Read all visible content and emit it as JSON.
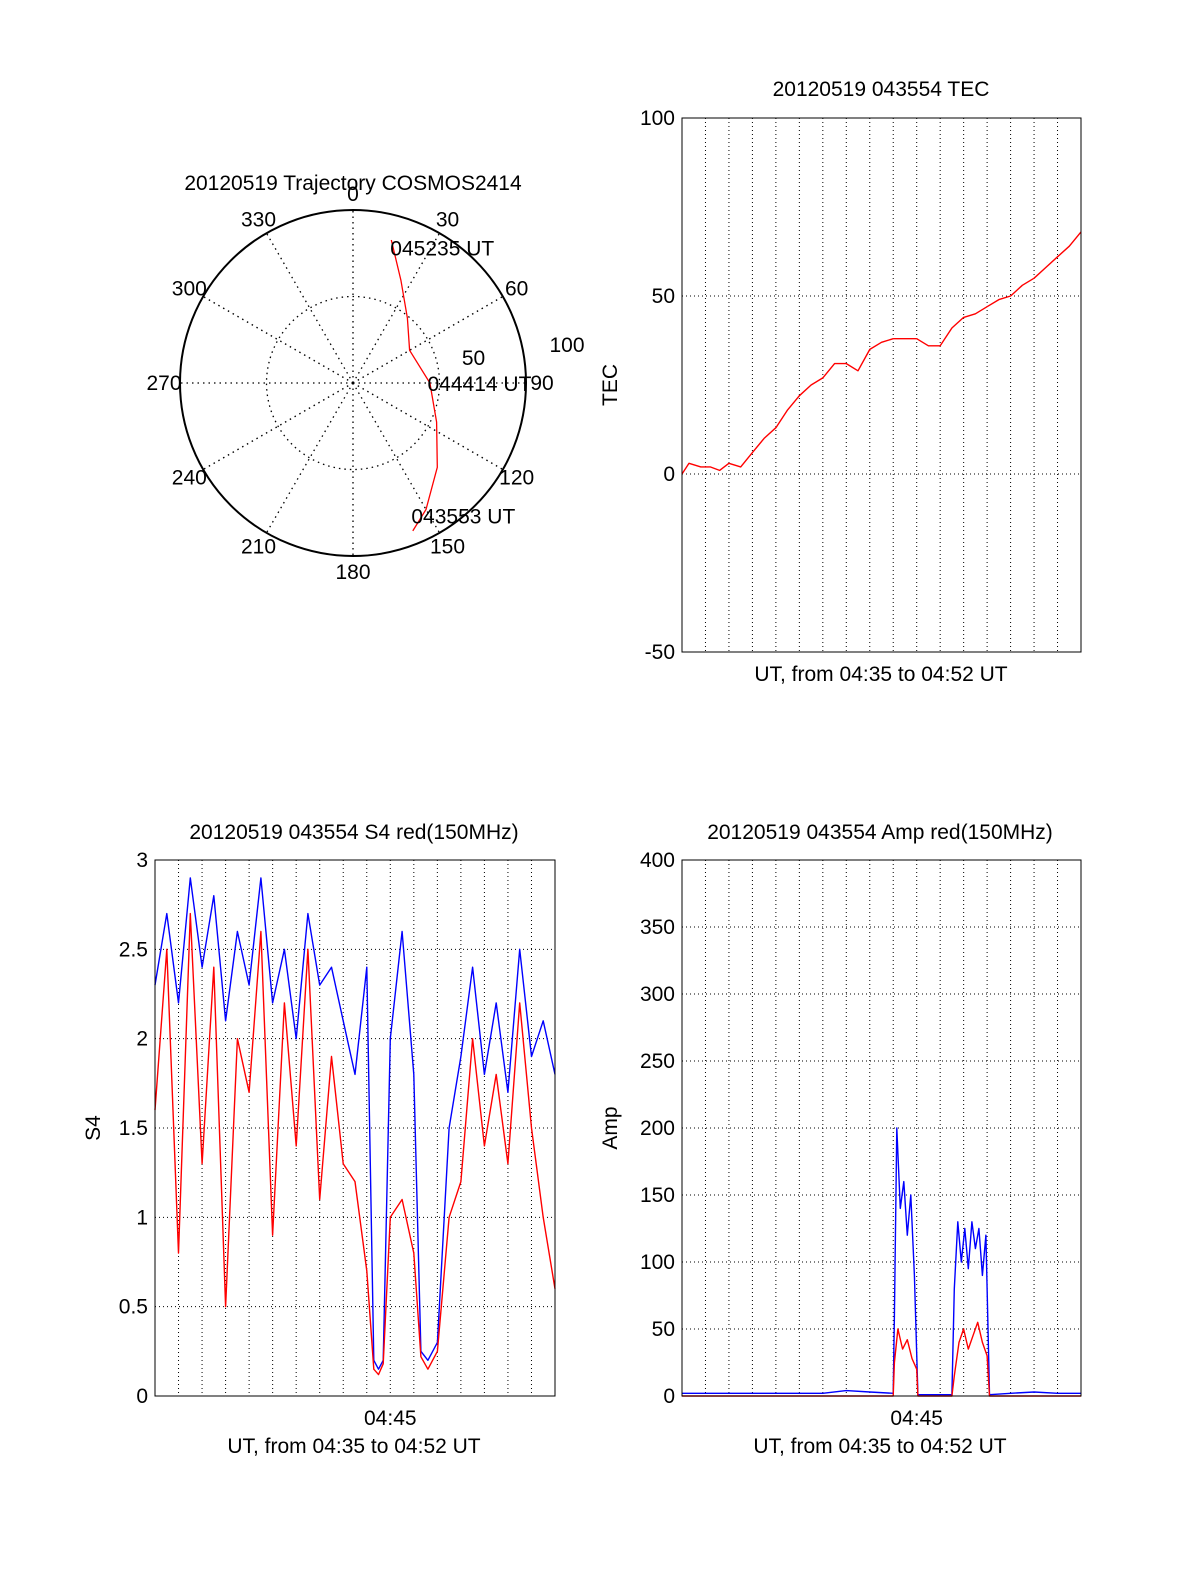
{
  "colors": {
    "red_series": "#ff0000",
    "blue_series": "#0000ff",
    "axis": "#000000",
    "grid": "#000000"
  },
  "chart_data": [
    {
      "type": "polar",
      "title": "20120519 Trajectory COSMOS2414",
      "angle_tick_labels": [
        "0",
        "30",
        "60",
        "90",
        "120",
        "150",
        "180",
        "210",
        "240",
        "270",
        "300",
        "330"
      ],
      "radius_tick_labels": [
        "50",
        "100"
      ],
      "series": [
        {
          "color": "red",
          "points": [
            {
              "az": 15,
              "el": 13
            },
            {
              "az": 25,
              "el": 31
            },
            {
              "az": 40,
              "el": 46
            },
            {
              "az": 60,
              "el": 56
            },
            {
              "az": 90,
              "el": 50
            },
            {
              "az": 115,
              "el": 42
            },
            {
              "az": 135,
              "el": 28
            },
            {
              "az": 150,
              "el": 14
            },
            {
              "az": 158,
              "el": 7
            }
          ]
        }
      ],
      "annotations": [
        {
          "text": "045235 UT",
          "az": 20,
          "el": 15
        },
        {
          "text": "044414 UT",
          "az": 90,
          "el": 45
        },
        {
          "text": "043553 UT",
          "az": 152,
          "el": 12
        }
      ]
    },
    {
      "type": "line",
      "title": "20120519 043554 TEC",
      "xlabel": "UT, from 04:35 to 04:52 UT",
      "ylabel": "TEC",
      "ylim": [
        -50,
        100
      ],
      "yticks": [
        "-50",
        "0",
        "50",
        "100"
      ],
      "xlim_minutes": [
        0,
        17
      ],
      "grid": true,
      "series": [
        {
          "color": "red",
          "x_minutes": [
            0,
            0.3,
            0.8,
            1.2,
            1.6,
            2.0,
            2.5,
            3.0,
            3.5,
            4.0,
            4.5,
            5.0,
            5.5,
            6.0,
            6.5,
            7.0,
            7.5,
            8.0,
            8.5,
            9.0,
            9.5,
            10.0,
            10.5,
            11.0,
            11.5,
            12.0,
            12.5,
            13.0,
            13.5,
            14.0,
            14.5,
            15.0,
            15.5,
            16.0,
            16.5,
            17.0
          ],
          "values": [
            0,
            3,
            2,
            2,
            1,
            3,
            2,
            6,
            10,
            13,
            18,
            22,
            25,
            27,
            31,
            31,
            29,
            35,
            37,
            38,
            38,
            38,
            36,
            36,
            41,
            44,
            45,
            47,
            49,
            50,
            53,
            55,
            58,
            61,
            64,
            68
          ]
        }
      ]
    },
    {
      "type": "line",
      "title": "20120519 043554 S4 red(150MHz)",
      "xlabel": "UT, from 04:35 to 04:52 UT",
      "ylabel": "S4",
      "ylim": [
        0,
        3
      ],
      "yticks": [
        "0",
        "0.5",
        "1",
        "1.5",
        "2",
        "2.5",
        "3"
      ],
      "xticks": [
        "04:45"
      ],
      "xlim_minutes": [
        0,
        17
      ],
      "grid": true,
      "series": [
        {
          "color": "blue",
          "x_minutes": [
            0,
            0.5,
            1,
            1.5,
            2,
            2.5,
            3,
            3.5,
            4,
            4.5,
            5,
            5.5,
            6,
            6.5,
            7,
            7.5,
            8,
            8.5,
            9,
            9.3,
            9.5,
            9.7,
            10,
            10.5,
            11,
            11.3,
            11.6,
            12,
            12.5,
            13,
            13.5,
            14,
            14.5,
            15,
            15.5,
            16,
            16.5,
            17
          ],
          "values": [
            2.3,
            2.7,
            2.2,
            2.9,
            2.4,
            2.8,
            2.1,
            2.6,
            2.3,
            2.9,
            2.2,
            2.5,
            2.0,
            2.7,
            2.3,
            2.4,
            2.1,
            1.8,
            2.4,
            0.2,
            0.15,
            0.2,
            2.0,
            2.6,
            1.8,
            0.25,
            0.2,
            0.3,
            1.5,
            1.9,
            2.4,
            1.8,
            2.2,
            1.7,
            2.5,
            1.9,
            2.1,
            1.8
          ]
        },
        {
          "color": "red",
          "x_minutes": [
            0,
            0.5,
            1,
            1.5,
            2,
            2.5,
            3,
            3.5,
            4,
            4.5,
            5,
            5.5,
            6,
            6.5,
            7,
            7.5,
            8,
            8.5,
            9,
            9.3,
            9.5,
            9.7,
            10,
            10.5,
            11,
            11.3,
            11.6,
            12,
            12.5,
            13,
            13.5,
            14,
            14.5,
            15,
            15.5,
            16,
            16.5,
            17
          ],
          "values": [
            1.6,
            2.5,
            0.8,
            2.7,
            1.3,
            2.4,
            0.5,
            2.0,
            1.7,
            2.6,
            0.9,
            2.2,
            1.4,
            2.5,
            1.1,
            1.9,
            1.3,
            1.2,
            0.7,
            0.15,
            0.12,
            0.18,
            1.0,
            1.1,
            0.8,
            0.22,
            0.15,
            0.25,
            1.0,
            1.2,
            2.0,
            1.4,
            1.8,
            1.3,
            2.2,
            1.5,
            1.0,
            0.6
          ]
        }
      ]
    },
    {
      "type": "line",
      "title": "20120519 043554 Amp red(150MHz)",
      "xlabel": "UT, from 04:35 to 04:52 UT",
      "ylabel": "Amp",
      "ylim": [
        0,
        400
      ],
      "yticks": [
        "0",
        "50",
        "100",
        "150",
        "200",
        "250",
        "300",
        "350",
        "400"
      ],
      "xticks": [
        "04:45"
      ],
      "xlim_minutes": [
        0,
        17
      ],
      "grid": true,
      "series": [
        {
          "color": "blue",
          "x_minutes": [
            0,
            2,
            4,
            6,
            7,
            8,
            9,
            9.05,
            9.15,
            9.3,
            9.45,
            9.6,
            9.75,
            9.9,
            10.05,
            11,
            11.5,
            11.6,
            11.75,
            11.9,
            12.05,
            12.2,
            12.35,
            12.5,
            12.65,
            12.8,
            12.95,
            13.1,
            14,
            15,
            16,
            17
          ],
          "values": [
            2,
            2,
            2,
            2,
            4,
            3,
            2,
            60,
            200,
            140,
            160,
            120,
            150,
            90,
            1,
            1,
            1,
            80,
            130,
            100,
            125,
            95,
            130,
            110,
            125,
            90,
            120,
            1,
            2,
            3,
            2,
            2
          ]
        },
        {
          "color": "red",
          "x_minutes": [
            0,
            9,
            9.05,
            9.2,
            9.4,
            9.6,
            9.8,
            10.0,
            10.05,
            11.5,
            11.6,
            11.8,
            12.0,
            12.2,
            12.4,
            12.6,
            12.8,
            13.0,
            13.1,
            17
          ],
          "values": [
            0,
            0,
            25,
            50,
            35,
            42,
            28,
            20,
            0,
            0,
            15,
            40,
            50,
            35,
            45,
            55,
            40,
            30,
            0,
            0
          ]
        }
      ]
    }
  ]
}
